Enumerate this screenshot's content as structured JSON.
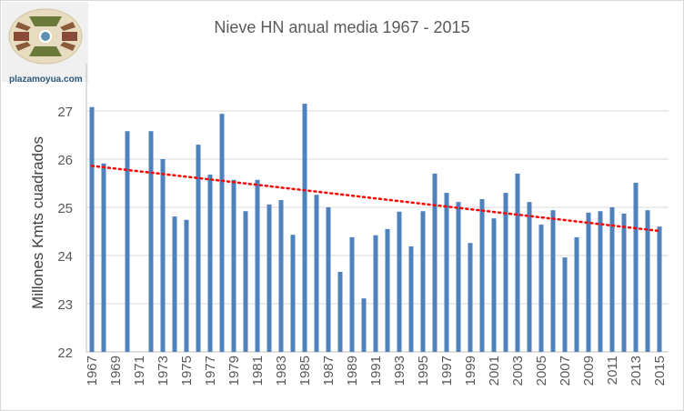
{
  "logo": {
    "text": "plazamoyua.com"
  },
  "chart_data": {
    "type": "bar",
    "title": "Nieve HN anual media 1967 - 2015",
    "xlabel": "",
    "ylabel": "Millones Kmts cuadrados",
    "ylim": [
      22,
      28
    ],
    "yticks": [
      "22",
      "23",
      "24",
      "25",
      "26",
      "27"
    ],
    "grid": true,
    "categories": [
      "1967",
      "1968",
      "1969",
      "1970",
      "1971",
      "1972",
      "1973",
      "1974",
      "1975",
      "1976",
      "1977",
      "1978",
      "1979",
      "1980",
      "1981",
      "1982",
      "1983",
      "1984",
      "1985",
      "1986",
      "1987",
      "1988",
      "1989",
      "1990",
      "1991",
      "1992",
      "1993",
      "1994",
      "1995",
      "1996",
      "1997",
      "1998",
      "1999",
      "2000",
      "2001",
      "2002",
      "2003",
      "2004",
      "2005",
      "2006",
      "2007",
      "2008",
      "2009",
      "2010",
      "2011",
      "2012",
      "2013",
      "2014",
      "2015"
    ],
    "xtick_labels": [
      "1967",
      "1969",
      "1971",
      "1973",
      "1975",
      "1977",
      "1979",
      "1981",
      "1983",
      "1985",
      "1987",
      "1989",
      "1991",
      "1993",
      "1995",
      "1997",
      "1999",
      "2001",
      "2003",
      "2005",
      "2007",
      "2009",
      "2011",
      "2013",
      "2015"
    ],
    "values": [
      27.08,
      25.91,
      null,
      26.58,
      null,
      26.58,
      26.0,
      24.81,
      24.74,
      26.3,
      25.68,
      26.94,
      25.57,
      24.92,
      25.57,
      25.06,
      25.15,
      24.43,
      27.15,
      25.26,
      25.0,
      23.66,
      24.38,
      23.11,
      24.42,
      24.55,
      24.91,
      24.19,
      24.92,
      25.7,
      25.3,
      25.11,
      24.26,
      25.17,
      24.77,
      25.3,
      25.7,
      25.11,
      24.64,
      24.94,
      23.96,
      24.38,
      24.89,
      24.92,
      25.0,
      24.87,
      25.51,
      24.94,
      24.6
    ],
    "trendline": {
      "type": "linear",
      "start": 25.86,
      "end": 24.51
    },
    "colors": {
      "bar": "#4f81bd",
      "trend": "#ff0000",
      "grid": "#d9d9d9"
    }
  }
}
